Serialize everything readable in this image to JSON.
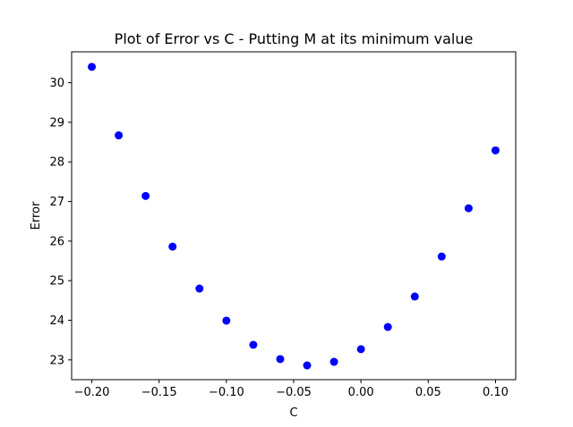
{
  "chart_data": {
    "type": "scatter",
    "title": "Plot of Error vs C - Putting M at its minimum value",
    "xlabel": "C",
    "ylabel": "Error",
    "xlim": [
      -0.215,
      0.115
    ],
    "ylim": [
      22.5,
      30.78
    ],
    "x_ticks": [
      -0.2,
      -0.15,
      -0.1,
      -0.05,
      0.0,
      0.05,
      0.1
    ],
    "x_tick_labels": [
      "−0.20",
      "−0.15",
      "−0.10",
      "−0.05",
      "0.00",
      "0.05",
      "0.10"
    ],
    "y_ticks": [
      23,
      24,
      25,
      26,
      27,
      28,
      29,
      30
    ],
    "y_tick_labels": [
      "23",
      "24",
      "25",
      "26",
      "27",
      "28",
      "29",
      "30"
    ],
    "grid": false,
    "marker_color": "#0000ff",
    "series": [
      {
        "x": [
          -0.2,
          -0.18,
          -0.16,
          -0.14,
          -0.12,
          -0.1,
          -0.08,
          -0.06,
          -0.04,
          -0.02,
          0.0,
          0.02,
          0.04,
          0.06,
          0.08,
          0.1
        ],
        "y": [
          30.4,
          28.67,
          27.14,
          25.86,
          24.8,
          23.99,
          23.38,
          23.02,
          22.86,
          22.95,
          23.27,
          23.83,
          24.6,
          25.61,
          26.83,
          28.29
        ]
      }
    ]
  }
}
